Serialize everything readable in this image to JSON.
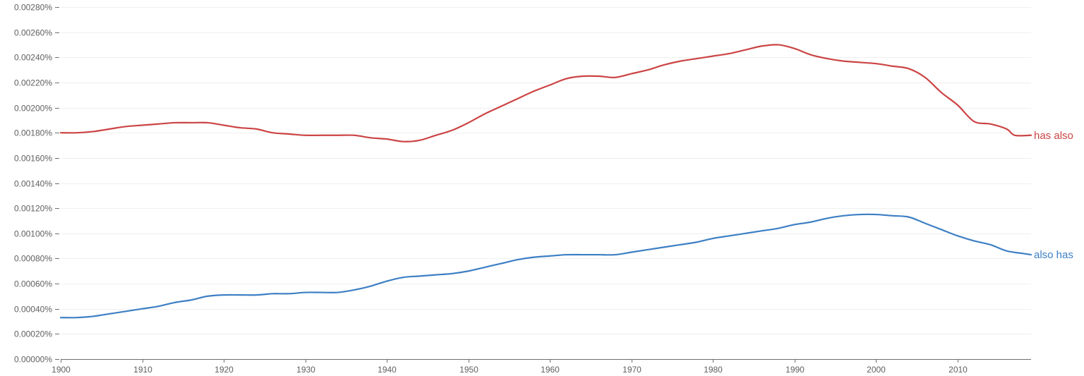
{
  "chart_data": {
    "type": "line",
    "title": "",
    "xlabel": "",
    "ylabel": "",
    "xlim": [
      1900,
      2019
    ],
    "ylim": [
      0,
      0.0028
    ],
    "grid": true,
    "x_ticks": [
      1900,
      1910,
      1920,
      1930,
      1940,
      1950,
      1960,
      1970,
      1980,
      1990,
      2000,
      2010
    ],
    "x_tick_labels": [
      "1900",
      "1910",
      "1920",
      "1930",
      "1940",
      "1950",
      "1960",
      "1970",
      "1980",
      "1990",
      "2000",
      "2010"
    ],
    "y_ticks": [
      0,
      0.0002,
      0.0004,
      0.0006,
      0.0008,
      0.001,
      0.0012,
      0.0014,
      0.0016,
      0.0018,
      0.002,
      0.0022,
      0.0024,
      0.0026,
      0.0028
    ],
    "y_tick_labels": [
      "0.00000%",
      "0.00020%",
      "0.00040%",
      "0.00060%",
      "0.00080%",
      "0.00100%",
      "0.00120%",
      "0.00140%",
      "0.00160%",
      "0.00180%",
      "0.00200%",
      "0.00220%",
      "0.00240%",
      "0.00260%",
      "0.00280%"
    ],
    "series": [
      {
        "name": "has also",
        "color": "#cc4444",
        "points": [
          [
            1900,
            0.0018
          ],
          [
            1902,
            0.0018
          ],
          [
            1904,
            0.00181
          ],
          [
            1906,
            0.00183
          ],
          [
            1908,
            0.00185
          ],
          [
            1910,
            0.00186
          ],
          [
            1912,
            0.00187
          ],
          [
            1914,
            0.00188
          ],
          [
            1916,
            0.00188
          ],
          [
            1918,
            0.00188
          ],
          [
            1920,
            0.00186
          ],
          [
            1922,
            0.00184
          ],
          [
            1924,
            0.00183
          ],
          [
            1926,
            0.0018
          ],
          [
            1928,
            0.00179
          ],
          [
            1930,
            0.00178
          ],
          [
            1932,
            0.00178
          ],
          [
            1934,
            0.00178
          ],
          [
            1936,
            0.00178
          ],
          [
            1938,
            0.00176
          ],
          [
            1940,
            0.00175
          ],
          [
            1942,
            0.00173
          ],
          [
            1944,
            0.00174
          ],
          [
            1946,
            0.00178
          ],
          [
            1948,
            0.00182
          ],
          [
            1950,
            0.00188
          ],
          [
            1952,
            0.00195
          ],
          [
            1954,
            0.00201
          ],
          [
            1956,
            0.00207
          ],
          [
            1958,
            0.00213
          ],
          [
            1960,
            0.00218
          ],
          [
            1962,
            0.00223
          ],
          [
            1964,
            0.00225
          ],
          [
            1966,
            0.00225
          ],
          [
            1968,
            0.00224
          ],
          [
            1970,
            0.00227
          ],
          [
            1972,
            0.0023
          ],
          [
            1974,
            0.00234
          ],
          [
            1976,
            0.00237
          ],
          [
            1978,
            0.00239
          ],
          [
            1980,
            0.00241
          ],
          [
            1982,
            0.00243
          ],
          [
            1984,
            0.00246
          ],
          [
            1986,
            0.00249
          ],
          [
            1988,
            0.0025
          ],
          [
            1990,
            0.00247
          ],
          [
            1992,
            0.00242
          ],
          [
            1994,
            0.00239
          ],
          [
            1996,
            0.00237
          ],
          [
            1998,
            0.00236
          ],
          [
            2000,
            0.00235
          ],
          [
            2002,
            0.00233
          ],
          [
            2004,
            0.00231
          ],
          [
            2006,
            0.00224
          ],
          [
            2008,
            0.00212
          ],
          [
            2010,
            0.00202
          ],
          [
            2012,
            0.00189
          ],
          [
            2014,
            0.00187
          ],
          [
            2016,
            0.00183
          ],
          [
            2017,
            0.00178
          ],
          [
            2019,
            0.00178
          ]
        ]
      },
      {
        "name": "also has",
        "color": "#3d7fc4",
        "points": [
          [
            1900,
            0.00033
          ],
          [
            1902,
            0.00033
          ],
          [
            1904,
            0.00034
          ],
          [
            1906,
            0.00036
          ],
          [
            1908,
            0.00038
          ],
          [
            1910,
            0.0004
          ],
          [
            1912,
            0.00042
          ],
          [
            1914,
            0.00045
          ],
          [
            1916,
            0.00047
          ],
          [
            1918,
            0.0005
          ],
          [
            1920,
            0.00051
          ],
          [
            1922,
            0.00051
          ],
          [
            1924,
            0.00051
          ],
          [
            1926,
            0.00052
          ],
          [
            1928,
            0.00052
          ],
          [
            1930,
            0.00053
          ],
          [
            1932,
            0.00053
          ],
          [
            1934,
            0.00053
          ],
          [
            1936,
            0.00055
          ],
          [
            1938,
            0.00058
          ],
          [
            1940,
            0.00062
          ],
          [
            1942,
            0.00065
          ],
          [
            1944,
            0.00066
          ],
          [
            1946,
            0.00067
          ],
          [
            1948,
            0.00068
          ],
          [
            1950,
            0.0007
          ],
          [
            1952,
            0.00073
          ],
          [
            1954,
            0.00076
          ],
          [
            1956,
            0.00079
          ],
          [
            1958,
            0.00081
          ],
          [
            1960,
            0.00082
          ],
          [
            1962,
            0.00083
          ],
          [
            1964,
            0.00083
          ],
          [
            1966,
            0.00083
          ],
          [
            1968,
            0.00083
          ],
          [
            1970,
            0.00085
          ],
          [
            1972,
            0.00087
          ],
          [
            1974,
            0.00089
          ],
          [
            1976,
            0.00091
          ],
          [
            1978,
            0.00093
          ],
          [
            1980,
            0.00096
          ],
          [
            1982,
            0.00098
          ],
          [
            1984,
            0.001
          ],
          [
            1986,
            0.00102
          ],
          [
            1988,
            0.00104
          ],
          [
            1990,
            0.00107
          ],
          [
            1992,
            0.00109
          ],
          [
            1994,
            0.00112
          ],
          [
            1996,
            0.00114
          ],
          [
            1998,
            0.00115
          ],
          [
            2000,
            0.00115
          ],
          [
            2002,
            0.00114
          ],
          [
            2004,
            0.00113
          ],
          [
            2006,
            0.00108
          ],
          [
            2008,
            0.00103
          ],
          [
            2010,
            0.00098
          ],
          [
            2012,
            0.00094
          ],
          [
            2014,
            0.00091
          ],
          [
            2016,
            0.00086
          ],
          [
            2018,
            0.00084
          ],
          [
            2019,
            0.00083
          ]
        ]
      }
    ]
  }
}
